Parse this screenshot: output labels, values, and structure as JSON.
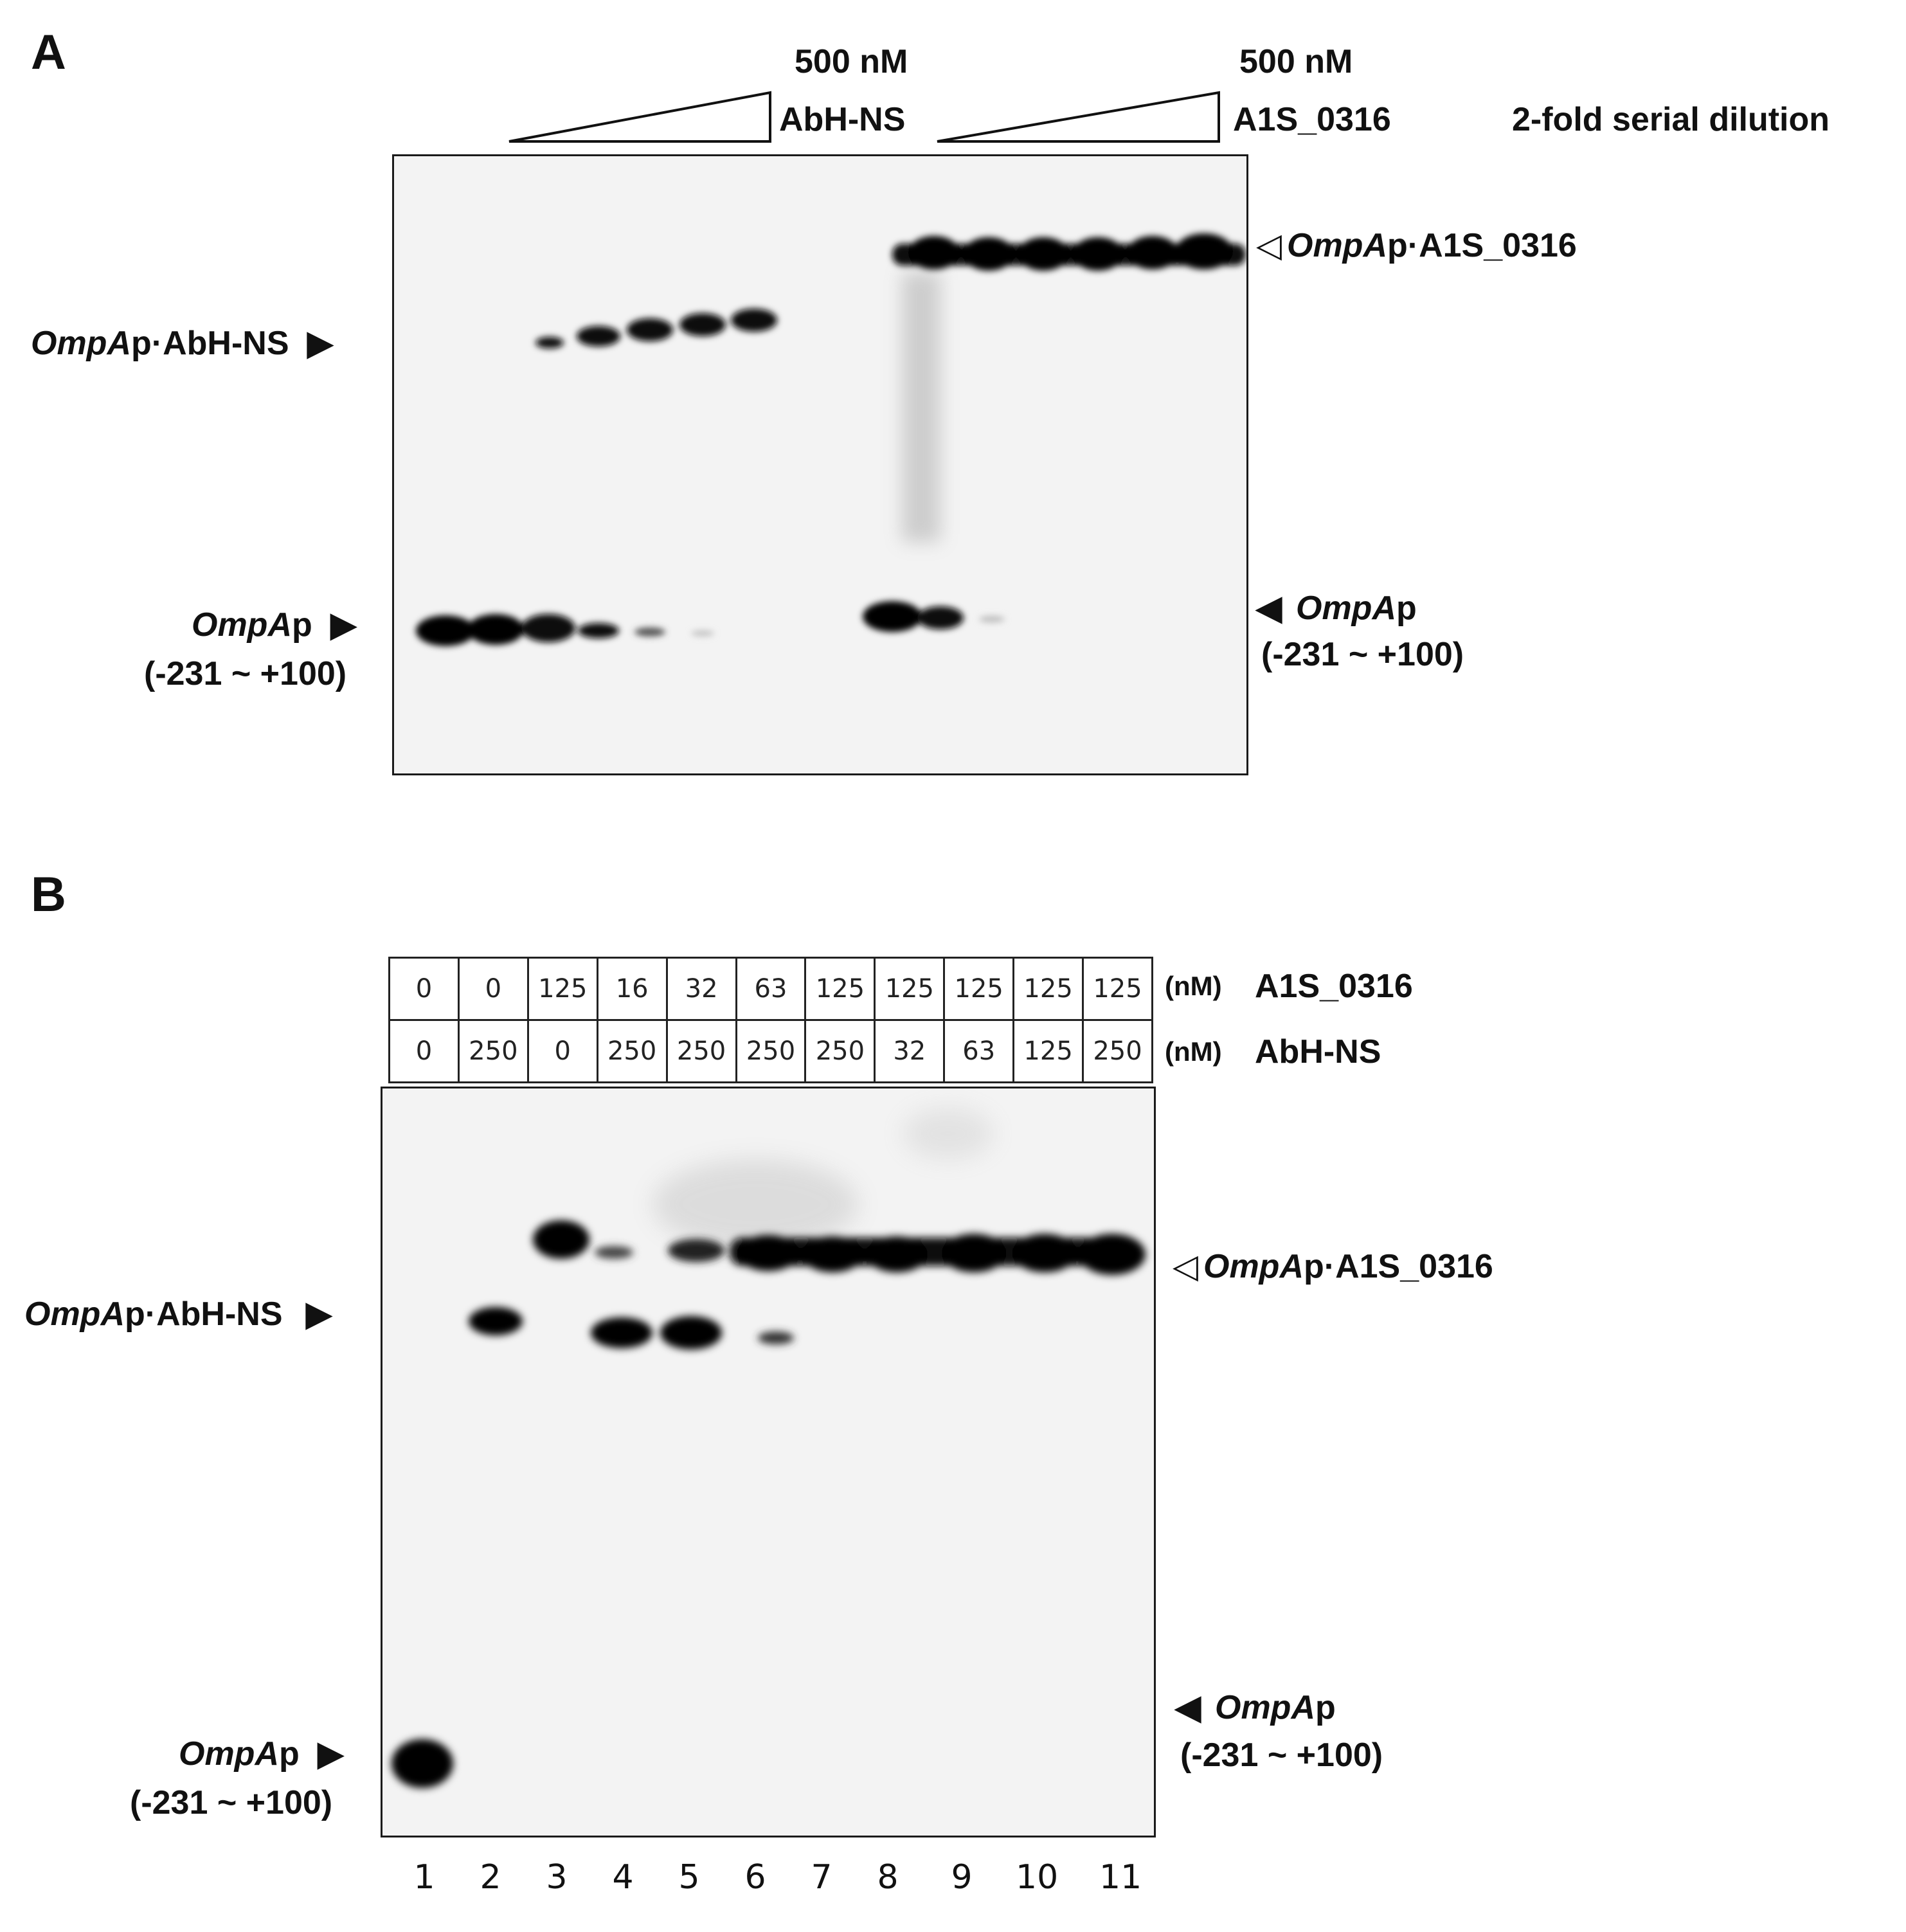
{
  "panel_a": {
    "label": "A",
    "triangle_1": {
      "top_label": "500 nM",
      "side_label": "AbH-NS"
    },
    "triangle_2": {
      "top_label": "500 nM",
      "side_label": "A1S_0316"
    },
    "dilution_note": "2-fold serial dilution",
    "left_upper_band": {
      "italic": "OmpA",
      "rest": "p·AbH-NS"
    },
    "left_lower_band": {
      "italic": "OmpA",
      "rest": "p",
      "range": "(-231 ~ +100)"
    },
    "right_upper_band": {
      "italic": "OmpA",
      "rest": "p·A1S_0316"
    },
    "right_lower_band": {
      "italic": "OmpA",
      "rest": "p",
      "range": "(-231 ~ +100)"
    },
    "arrows": {
      "filled_right": "▶",
      "filled_left": "◀",
      "open_left": "◁"
    }
  },
  "panel_b": {
    "label": "B",
    "row_a1s": {
      "values": [
        "0",
        "0",
        "125",
        "16",
        "32",
        "63",
        "125",
        "125",
        "125",
        "125",
        "125"
      ],
      "unit": "(nM)",
      "protein": "A1S_0316"
    },
    "row_abhns": {
      "values": [
        "0",
        "250",
        "0",
        "250",
        "250",
        "250",
        "250",
        "32",
        "63",
        "125",
        "250"
      ],
      "unit": "(nM)",
      "protein": "AbH-NS"
    },
    "left_upper_band": {
      "italic": "OmpA",
      "rest": "p·AbH-NS"
    },
    "left_lower_band": {
      "italic": "OmpA",
      "rest": "p",
      "range": "(-231 ~ +100)"
    },
    "right_upper_band": {
      "italic": "OmpA",
      "rest": "p·A1S_0316"
    },
    "right_lower_band": {
      "italic": "OmpA",
      "rest": "p",
      "range": "(-231 ~ +100)"
    },
    "lane_numbers": [
      "1",
      "2",
      "3",
      "4",
      "5",
      "6",
      "7",
      "8",
      "9",
      "10",
      "11"
    ]
  }
}
